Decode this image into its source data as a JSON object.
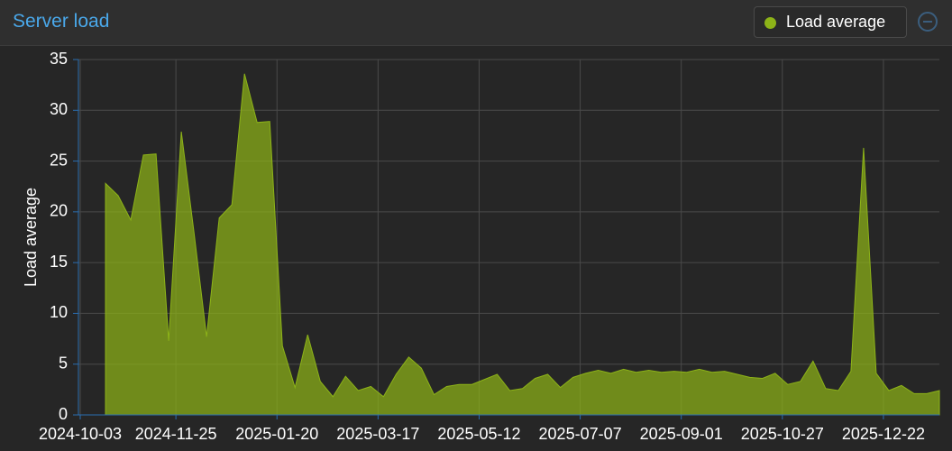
{
  "header": {
    "title": "Server load"
  },
  "chart_data": {
    "type": "area",
    "y_label": "Load average",
    "x": [
      "2024-10-17",
      "2024-10-24",
      "2024-10-31",
      "2024-11-07",
      "2024-11-14",
      "2024-11-21",
      "2024-11-28",
      "2024-12-05",
      "2024-12-12",
      "2024-12-19",
      "2024-12-26",
      "2025-01-02",
      "2025-01-09",
      "2025-01-16",
      "2025-01-23",
      "2025-01-30",
      "2025-02-06",
      "2025-02-13",
      "2025-02-20",
      "2025-02-27",
      "2025-03-06",
      "2025-03-13",
      "2025-03-20",
      "2025-03-27",
      "2025-04-03",
      "2025-04-10",
      "2025-04-17",
      "2025-04-24",
      "2025-05-01",
      "2025-05-08",
      "2025-05-15",
      "2025-05-22",
      "2025-05-29",
      "2025-06-05",
      "2025-06-12",
      "2025-06-19",
      "2025-06-26",
      "2025-07-03",
      "2025-07-10",
      "2025-07-17",
      "2025-07-24",
      "2025-07-31",
      "2025-08-07",
      "2025-08-14",
      "2025-08-21",
      "2025-08-28",
      "2025-09-04",
      "2025-09-11",
      "2025-09-18",
      "2025-09-25",
      "2025-10-02",
      "2025-10-09",
      "2025-10-16",
      "2025-10-23",
      "2025-10-30",
      "2025-11-06",
      "2025-11-13",
      "2025-11-20",
      "2025-11-27",
      "2025-12-04",
      "2025-12-11",
      "2025-12-18",
      "2025-12-25",
      "2026-01-01",
      "2026-01-08",
      "2026-01-15",
      "2026-01-22"
    ],
    "series": [
      {
        "name": "Load average",
        "color": "#8db318",
        "values": [
          22.8,
          21.6,
          19.2,
          25.6,
          25.7,
          7.3,
          27.9,
          18,
          7.7,
          19.4,
          20.7,
          33.6,
          28.8,
          28.9,
          6.8,
          2.7,
          7.9,
          3.3,
          1.8,
          3.8,
          2.4,
          2.8,
          1.8,
          4,
          5.7,
          4.6,
          2,
          2.8,
          3,
          3,
          3.5,
          4,
          2.4,
          2.6,
          3.6,
          4,
          2.7,
          3.7,
          4.1,
          4.4,
          4.1,
          4.5,
          4.2,
          4.4,
          4.2,
          4.3,
          4.2,
          4.5,
          4.2,
          4.3,
          4,
          3.7,
          3.6,
          4.1,
          3,
          3.3,
          5.3,
          2.6,
          2.4,
          4.3,
          26.3,
          4.1,
          2.4,
          2.9,
          2.1,
          2.1,
          2.4
        ]
      }
    ],
    "xlim": [
      "2024-10-02",
      "2026-01-22"
    ],
    "xticks": [
      "2024-10-03",
      "2024-11-25",
      "2025-01-20",
      "2025-03-17",
      "2025-05-12",
      "2025-07-07",
      "2025-09-01",
      "2025-10-27",
      "2025-12-22"
    ],
    "ylim": [
      0,
      35
    ],
    "yticks": [
      0,
      5,
      10,
      15,
      20,
      25,
      30,
      35
    ],
    "grid": true
  }
}
